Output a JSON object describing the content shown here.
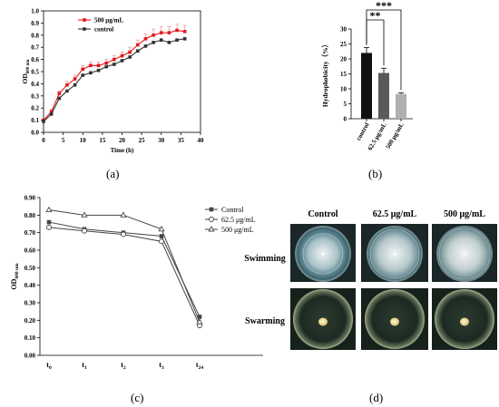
{
  "panels": {
    "a": "(a)",
    "b": "(b)",
    "c": "(c)",
    "d": "(d)"
  },
  "chart_data": [
    {
      "id": "a",
      "type": "line",
      "ylabel": "OD",
      "ylabel_sub": "600 nm",
      "xlabel": "Time (h)",
      "xlim": [
        0,
        40
      ],
      "ylim": [
        0.0,
        1.0
      ],
      "xticks": [
        "0",
        "5",
        "10",
        "15",
        "20",
        "25",
        "30",
        "35",
        "40"
      ],
      "yticks": [
        "0.0",
        "0.1",
        "0.2",
        "0.3",
        "0.4",
        "0.5",
        "0.6",
        "0.7",
        "0.8",
        "0.9",
        "1.0"
      ],
      "legend_position": "top-left",
      "colors": {
        "500": "#e8161b",
        "control": "#333333"
      },
      "x": [
        0,
        2,
        4,
        6,
        8,
        10,
        12,
        14,
        16,
        18,
        20,
        22,
        24,
        26,
        28,
        30,
        32,
        34,
        36
      ],
      "series": [
        {
          "name": "500 μg/mL",
          "key": "500",
          "values": [
            0.1,
            0.17,
            0.32,
            0.39,
            0.44,
            0.52,
            0.55,
            0.55,
            0.57,
            0.6,
            0.63,
            0.66,
            0.72,
            0.77,
            0.8,
            0.82,
            0.82,
            0.84,
            0.83
          ],
          "err": [
            0.01,
            0.02,
            0.02,
            0.03,
            0.03,
            0.03,
            0.03,
            0.03,
            0.03,
            0.03,
            0.03,
            0.04,
            0.04,
            0.04,
            0.05,
            0.05,
            0.05,
            0.05,
            0.05
          ]
        },
        {
          "name": "control",
          "key": "control",
          "values": [
            0.09,
            0.15,
            0.28,
            0.34,
            0.39,
            0.47,
            0.49,
            0.51,
            0.54,
            0.56,
            0.59,
            0.62,
            0.67,
            0.71,
            0.74,
            0.76,
            0.74,
            0.76,
            0.77
          ],
          "err": [
            0,
            0,
            0,
            0,
            0,
            0,
            0,
            0,
            0,
            0,
            0,
            0,
            0,
            0,
            0,
            0,
            0,
            0,
            0
          ]
        }
      ]
    },
    {
      "id": "b",
      "type": "bar",
      "ylabel": "Hydrophobicity（%）",
      "ylim": [
        0,
        30
      ],
      "yticks": [
        "0",
        "5",
        "10",
        "15",
        "20",
        "25",
        "30"
      ],
      "categories": [
        "control",
        "62.5 μg/mL",
        "500 μg/mL"
      ],
      "values": [
        22.0,
        15.3,
        8.3
      ],
      "err": [
        1.8,
        1.6,
        0.4
      ],
      "bar_colors": [
        "#111111",
        "#5a5a5a",
        "#b0b0b0"
      ],
      "significance": [
        {
          "from": 0,
          "to": 1,
          "label": "**"
        },
        {
          "from": 0,
          "to": 2,
          "label": "***"
        }
      ]
    },
    {
      "id": "c",
      "type": "line",
      "ylabel": "OD",
      "ylabel_sub": "600 nm",
      "ylim": [
        0.0,
        0.9
      ],
      "yticks": [
        "0.00",
        "0.10",
        "0.20",
        "0.30",
        "0.40",
        "0.50",
        "0.60",
        "0.70",
        "0.80",
        "0.90"
      ],
      "categories": [
        {
          "main": "t",
          "sub": "0"
        },
        {
          "main": "t",
          "sub": "1"
        },
        {
          "main": "t",
          "sub": "2"
        },
        {
          "main": "t",
          "sub": "3"
        },
        {
          "main": "t",
          "sub": "24"
        }
      ],
      "legend_position": "top-right",
      "series": [
        {
          "name": "Control",
          "marker": "square",
          "values": [
            0.76,
            0.72,
            0.7,
            0.68,
            0.22
          ]
        },
        {
          "name": "62.5 μg/mL",
          "marker": "circle",
          "values": [
            0.73,
            0.71,
            0.69,
            0.65,
            0.17
          ]
        },
        {
          "name": "500 μg/mL",
          "marker": "triangle",
          "values": [
            0.83,
            0.8,
            0.8,
            0.72,
            0.19
          ]
        }
      ]
    }
  ],
  "photos": {
    "columns": [
      "Control",
      "62.5 μg/mL",
      "500 μg/mL"
    ],
    "rows": [
      "Swimming",
      "Swarming"
    ]
  }
}
